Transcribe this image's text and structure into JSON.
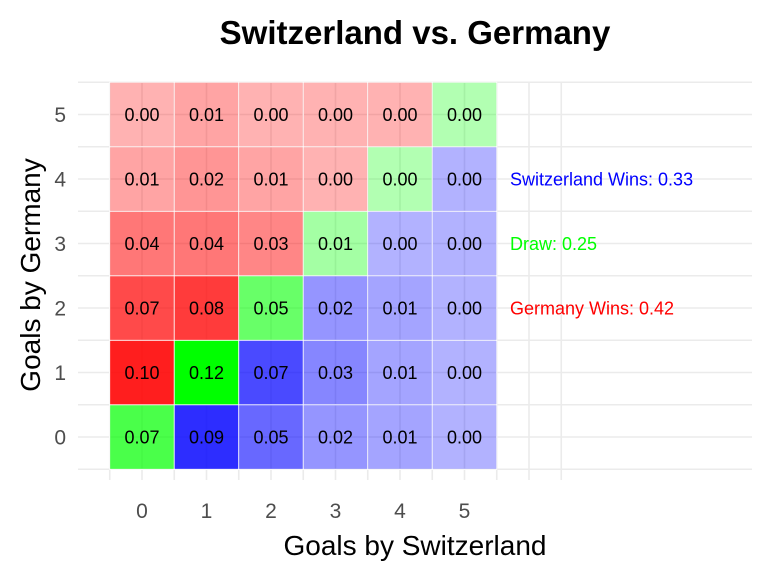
{
  "chart_data": {
    "type": "heatmap",
    "title": "Switzerland vs. Germany",
    "xlabel": "Goals by Switzerland",
    "ylabel": "Goals by Germany",
    "x_categories": [
      "0",
      "1",
      "2",
      "3",
      "4",
      "5"
    ],
    "y_categories": [
      "0",
      "1",
      "2",
      "3",
      "4",
      "5"
    ],
    "cells": [
      {
        "x": 0,
        "y": 0,
        "value": 0.07,
        "label": "0.07",
        "outcome": "draw"
      },
      {
        "x": 1,
        "y": 0,
        "value": 0.09,
        "label": "0.09",
        "outcome": "switzerland"
      },
      {
        "x": 2,
        "y": 0,
        "value": 0.05,
        "label": "0.05",
        "outcome": "switzerland"
      },
      {
        "x": 3,
        "y": 0,
        "value": 0.02,
        "label": "0.02",
        "outcome": "switzerland"
      },
      {
        "x": 4,
        "y": 0,
        "value": 0.01,
        "label": "0.01",
        "outcome": "switzerland"
      },
      {
        "x": 5,
        "y": 0,
        "value": 0.0,
        "label": "0.00",
        "outcome": "switzerland"
      },
      {
        "x": 0,
        "y": 1,
        "value": 0.1,
        "label": "0.10",
        "outcome": "germany"
      },
      {
        "x": 1,
        "y": 1,
        "value": 0.12,
        "label": "0.12",
        "outcome": "draw"
      },
      {
        "x": 2,
        "y": 1,
        "value": 0.07,
        "label": "0.07",
        "outcome": "switzerland"
      },
      {
        "x": 3,
        "y": 1,
        "value": 0.03,
        "label": "0.03",
        "outcome": "switzerland"
      },
      {
        "x": 4,
        "y": 1,
        "value": 0.01,
        "label": "0.01",
        "outcome": "switzerland"
      },
      {
        "x": 5,
        "y": 1,
        "value": 0.0,
        "label": "0.00",
        "outcome": "switzerland"
      },
      {
        "x": 0,
        "y": 2,
        "value": 0.07,
        "label": "0.07",
        "outcome": "germany"
      },
      {
        "x": 1,
        "y": 2,
        "value": 0.08,
        "label": "0.08",
        "outcome": "germany"
      },
      {
        "x": 2,
        "y": 2,
        "value": 0.05,
        "label": "0.05",
        "outcome": "draw"
      },
      {
        "x": 3,
        "y": 2,
        "value": 0.02,
        "label": "0.02",
        "outcome": "switzerland"
      },
      {
        "x": 4,
        "y": 2,
        "value": 0.01,
        "label": "0.01",
        "outcome": "switzerland"
      },
      {
        "x": 5,
        "y": 2,
        "value": 0.0,
        "label": "0.00",
        "outcome": "switzerland"
      },
      {
        "x": 0,
        "y": 3,
        "value": 0.04,
        "label": "0.04",
        "outcome": "germany"
      },
      {
        "x": 1,
        "y": 3,
        "value": 0.04,
        "label": "0.04",
        "outcome": "germany"
      },
      {
        "x": 2,
        "y": 3,
        "value": 0.03,
        "label": "0.03",
        "outcome": "germany"
      },
      {
        "x": 3,
        "y": 3,
        "value": 0.01,
        "label": "0.01",
        "outcome": "draw"
      },
      {
        "x": 4,
        "y": 3,
        "value": 0.0,
        "label": "0.00",
        "outcome": "switzerland"
      },
      {
        "x": 5,
        "y": 3,
        "value": 0.0,
        "label": "0.00",
        "outcome": "switzerland"
      },
      {
        "x": 0,
        "y": 4,
        "value": 0.01,
        "label": "0.01",
        "outcome": "germany"
      },
      {
        "x": 1,
        "y": 4,
        "value": 0.02,
        "label": "0.02",
        "outcome": "germany"
      },
      {
        "x": 2,
        "y": 4,
        "value": 0.01,
        "label": "0.01",
        "outcome": "germany"
      },
      {
        "x": 3,
        "y": 4,
        "value": 0.0,
        "label": "0.00",
        "outcome": "germany"
      },
      {
        "x": 4,
        "y": 4,
        "value": 0.0,
        "label": "0.00",
        "outcome": "draw"
      },
      {
        "x": 5,
        "y": 4,
        "value": 0.0,
        "label": "0.00",
        "outcome": "switzerland"
      },
      {
        "x": 0,
        "y": 5,
        "value": 0.0,
        "label": "0.00",
        "outcome": "germany"
      },
      {
        "x": 1,
        "y": 5,
        "value": 0.01,
        "label": "0.01",
        "outcome": "germany"
      },
      {
        "x": 2,
        "y": 5,
        "value": 0.0,
        "label": "0.00",
        "outcome": "germany"
      },
      {
        "x": 3,
        "y": 5,
        "value": 0.0,
        "label": "0.00",
        "outcome": "germany"
      },
      {
        "x": 4,
        "y": 5,
        "value": 0.0,
        "label": "0.00",
        "outcome": "germany"
      },
      {
        "x": 5,
        "y": 5,
        "value": 0.0,
        "label": "0.00",
        "outcome": "draw"
      }
    ],
    "outcome_colors": {
      "switzerland": "#0000ff",
      "draw": "#00ff00",
      "germany": "#ff0000"
    },
    "annotations": [
      {
        "text": "Switzerland Wins: 0.33",
        "color": "#0000ff",
        "row": 4
      },
      {
        "text": "Draw: 0.25",
        "color": "#00ff00",
        "row": 3
      },
      {
        "text": "Germany Wins: 0.42",
        "color": "#ff0000",
        "row": 2
      }
    ],
    "grid": true,
    "legend": "none"
  }
}
